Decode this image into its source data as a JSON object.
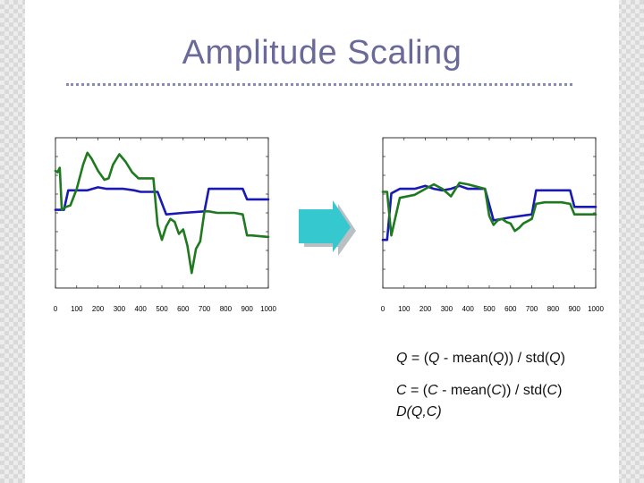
{
  "title": "Amplitude Scaling",
  "colors": {
    "query_series": "#1919b3",
    "candidate_series": "#1f7a1f",
    "arrow": "#35c9cf",
    "arrow_shadow": "#b8c0c4",
    "title": "#6a6a9a"
  },
  "chart_data": [
    {
      "type": "line",
      "title": "",
      "xlabel": "",
      "ylabel": "",
      "x_ticks": [
        "0",
        "100",
        "200",
        "300",
        "400",
        "500",
        "600",
        "700",
        "800",
        "900",
        "1000"
      ],
      "xlim": [
        0,
        1000
      ],
      "ylim": [
        -3.3,
        1.7
      ],
      "grid": false,
      "series": [
        {
          "color": "#1919b3",
          "x": [
            0,
            20,
            40,
            60,
            80,
            150,
            200,
            240,
            280,
            320,
            370,
            400,
            480,
            520,
            600,
            700,
            720,
            760,
            800,
            840,
            880,
            900,
            1000
          ],
          "y": [
            -0.7,
            -0.7,
            -0.7,
            -0.05,
            -0.05,
            -0.05,
            0.05,
            0.0,
            0.0,
            0.0,
            -0.05,
            -0.1,
            -0.1,
            -0.85,
            -0.8,
            -0.75,
            0.0,
            0.0,
            0.0,
            0.0,
            0.0,
            -0.35,
            -0.35
          ]
        },
        {
          "color": "#1f7a1f",
          "x": [
            0,
            10,
            20,
            30,
            50,
            70,
            100,
            130,
            150,
            170,
            200,
            230,
            250,
            270,
            300,
            330,
            360,
            390,
            420,
            460,
            480,
            500,
            520,
            540,
            560,
            580,
            600,
            620,
            640,
            660,
            680,
            700,
            720,
            760,
            800,
            840,
            880,
            900,
            920,
            1000
          ],
          "y": [
            0.6,
            0.55,
            0.7,
            -0.7,
            -0.6,
            -0.55,
            0.0,
            0.8,
            1.2,
            1.0,
            0.6,
            0.3,
            0.35,
            0.8,
            1.15,
            0.9,
            0.55,
            0.35,
            0.35,
            0.35,
            -1.2,
            -1.7,
            -1.25,
            -1.0,
            -1.1,
            -1.5,
            -1.35,
            -1.9,
            -2.8,
            -2.0,
            -1.75,
            -0.75,
            -0.75,
            -0.8,
            -0.8,
            -0.8,
            -0.85,
            -1.55,
            -1.55,
            -1.6
          ]
        }
      ]
    },
    {
      "type": "line",
      "title": "",
      "xlabel": "",
      "ylabel": "",
      "x_ticks": [
        "0",
        "100",
        "200",
        "300",
        "400",
        "500",
        "600",
        "700",
        "800",
        "900",
        "1000"
      ],
      "xlim": [
        0,
        1000
      ],
      "ylim": [
        -3.3,
        1.7
      ],
      "grid": false,
      "series": [
        {
          "color": "#1919b3",
          "x": [
            0,
            20,
            40,
            80,
            150,
            200,
            240,
            280,
            320,
            360,
            400,
            480,
            520,
            600,
            700,
            720,
            760,
            800,
            840,
            880,
            900,
            1000
          ],
          "y": [
            -1.7,
            -1.7,
            -0.15,
            0.0,
            0.0,
            0.1,
            0.0,
            -0.05,
            0.0,
            0.1,
            0.0,
            0.0,
            -1.05,
            -0.95,
            -0.85,
            -0.05,
            -0.05,
            -0.05,
            -0.05,
            -0.05,
            -0.6,
            -0.6
          ]
        },
        {
          "color": "#1f7a1f",
          "x": [
            0,
            20,
            40,
            80,
            150,
            200,
            240,
            280,
            320,
            360,
            400,
            480,
            500,
            520,
            540,
            560,
            580,
            600,
            620,
            640,
            660,
            700,
            720,
            760,
            800,
            840,
            880,
            900,
            920,
            1000
          ],
          "y": [
            -0.1,
            -0.1,
            -1.55,
            -0.3,
            -0.2,
            0.0,
            0.15,
            0.0,
            -0.25,
            0.2,
            0.15,
            0.0,
            -0.9,
            -1.2,
            -1.05,
            -1.0,
            -1.1,
            -1.15,
            -1.4,
            -1.3,
            -1.15,
            -1.0,
            -0.5,
            -0.45,
            -0.45,
            -0.45,
            -0.5,
            -0.85,
            -0.85,
            -0.85
          ]
        }
      ]
    }
  ],
  "formulas": {
    "line1": {
      "lhs": "Q",
      "mid": " = (",
      "var": "Q",
      "rest": " - mean(",
      "var2": "Q",
      "rest2": ")) / std(",
      "var3": "Q",
      "end": ")"
    },
    "line2": {
      "lhs": "C",
      "mid": " = (",
      "var": "C",
      "rest": " - mean(",
      "var2": "C",
      "rest2": ")) / std(",
      "var3": "C",
      "end": ")"
    },
    "line3": "D(Q,C)"
  }
}
